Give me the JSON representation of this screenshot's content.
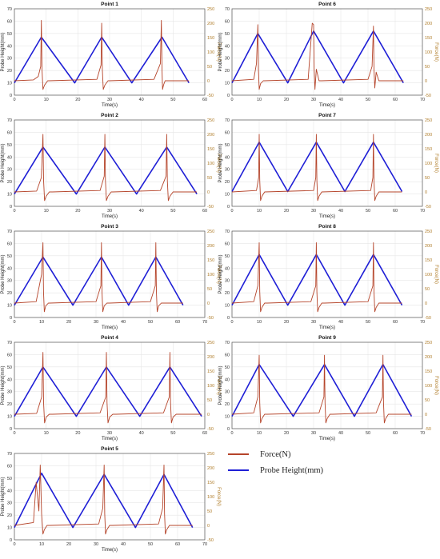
{
  "colors": {
    "force": "#b5442a",
    "height": "#1f1fd6",
    "axis_right": "#b07d2a",
    "grid": "#e6e6e6"
  },
  "legend": {
    "force_label": "Force(N)",
    "height_label": "Probe Height(mm)"
  },
  "chart_data": [
    {
      "type": "line",
      "title": "Point 1",
      "xlabel": "Time(s)",
      "ylabel_left": "Probe Height(mm)",
      "ylabel_right": "Force(N)",
      "xlim": [
        0,
        60
      ],
      "xticks": [
        0,
        10,
        20,
        30,
        40,
        50,
        60
      ],
      "ylim_left": [
        0,
        70
      ],
      "ylim_right": [
        -50,
        250
      ],
      "series": [
        {
          "name": "Probe Height(mm)",
          "axis": "left",
          "x": [
            0,
            8.5,
            19,
            27.5,
            37,
            46.5,
            55
          ],
          "y": [
            10,
            47,
            10,
            47,
            10,
            47,
            10
          ]
        },
        {
          "name": "Force(N)",
          "axis": "right",
          "x": [
            0,
            6,
            7.5,
            8.3,
            8.5,
            8.7,
            9,
            9.5,
            10.5,
            11,
            26,
            27.3,
            27.5,
            27.7,
            28,
            28.5,
            29.5,
            30,
            44,
            46,
            46.3,
            46.5,
            46.7,
            47,
            47.5,
            48.5,
            49,
            55
          ],
          "y": [
            0,
            3,
            15,
            50,
            210,
            40,
            -30,
            -15,
            0,
            0,
            5,
            55,
            200,
            40,
            -30,
            -15,
            0,
            0,
            5,
            60,
            210,
            40,
            -30,
            -15,
            0,
            0,
            0,
            0
          ]
        }
      ]
    },
    {
      "type": "line",
      "title": "Point 6",
      "xlabel": "Time(s)",
      "ylabel_left": "Probe Height(mm)",
      "ylabel_right": "Force(N)",
      "xlim": [
        0,
        70
      ],
      "xticks": [
        0,
        10,
        20,
        30,
        40,
        50,
        60,
        70
      ],
      "ylim_left": [
        0,
        70
      ],
      "ylim_right": [
        -50,
        250
      ],
      "series": [
        {
          "name": "Probe Height(mm)",
          "axis": "left",
          "x": [
            0,
            9.5,
            20.5,
            30,
            41,
            52,
            63
          ],
          "y": [
            10,
            50,
            10,
            52,
            10,
            52,
            10
          ]
        },
        {
          "name": "Force(N)",
          "axis": "right",
          "x": [
            0,
            8,
            9,
            9.5,
            9.7,
            10,
            10.5,
            11.5,
            12,
            28,
            29.5,
            30,
            30.2,
            30.5,
            31,
            32,
            33,
            50,
            51.5,
            52,
            52.2,
            52.5,
            53,
            54,
            55,
            63
          ],
          "y": [
            0,
            5,
            60,
            195,
            40,
            -30,
            -10,
            0,
            0,
            5,
            200,
            195,
            40,
            -30,
            40,
            0,
            0,
            5,
            50,
            190,
            40,
            -25,
            30,
            0,
            0,
            0
          ]
        }
      ]
    },
    {
      "type": "line",
      "title": "Point 2",
      "xlabel": "Time(s)",
      "ylabel_left": "Probe Height(mm)",
      "ylabel_right": "Force(N)",
      "xlim": [
        0,
        60
      ],
      "xticks": [
        0,
        10,
        20,
        30,
        40,
        50,
        60
      ],
      "ylim_left": [
        0,
        70
      ],
      "ylim_right": [
        -50,
        250
      ],
      "series": [
        {
          "name": "Probe Height(mm)",
          "axis": "left",
          "x": [
            0,
            9,
            19.5,
            28.5,
            38.5,
            48,
            57.5
          ],
          "y": [
            10,
            48,
            10,
            48,
            10,
            48,
            10
          ]
        },
        {
          "name": "Force(N)",
          "axis": "right",
          "x": [
            0,
            7,
            8.5,
            9,
            9.2,
            9.5,
            10,
            11,
            12,
            27,
            28.3,
            28.5,
            28.7,
            29,
            29.5,
            30.5,
            31,
            46,
            47.8,
            48,
            48.2,
            48.5,
            49,
            50,
            51,
            57.5
          ],
          "y": [
            0,
            3,
            50,
            200,
            40,
            -30,
            -15,
            0,
            0,
            5,
            55,
            200,
            40,
            -30,
            -15,
            0,
            0,
            5,
            55,
            200,
            40,
            -30,
            -15,
            0,
            0,
            0
          ]
        }
      ]
    },
    {
      "type": "line",
      "title": "Point 7",
      "xlabel": "Time(s)",
      "ylabel_left": "Probe Height(mm)",
      "ylabel_right": "Force(N)",
      "xlim": [
        0,
        70
      ],
      "xticks": [
        0,
        10,
        20,
        30,
        40,
        50,
        60,
        70
      ],
      "ylim_left": [
        0,
        70
      ],
      "ylim_right": [
        -50,
        250
      ],
      "series": [
        {
          "name": "Probe Height(mm)",
          "axis": "left",
          "x": [
            0,
            10,
            20.5,
            31,
            41.5,
            52,
            62.5
          ],
          "y": [
            12,
            52,
            12,
            52,
            12,
            52,
            12
          ]
        },
        {
          "name": "Force(N)",
          "axis": "right",
          "x": [
            0,
            9,
            9.8,
            10,
            10.2,
            10.5,
            11,
            12,
            30,
            30.8,
            31,
            31.2,
            31.5,
            32,
            33,
            51,
            51.8,
            52,
            52.2,
            52.5,
            53,
            54,
            62.5
          ],
          "y": [
            0,
            5,
            50,
            200,
            40,
            -30,
            -15,
            0,
            5,
            50,
            200,
            40,
            -30,
            -15,
            0,
            5,
            50,
            200,
            40,
            -30,
            -15,
            0,
            0
          ]
        }
      ]
    },
    {
      "type": "line",
      "title": "Point 3",
      "xlabel": "Time(s)",
      "ylabel_left": "Probe Height(mm)",
      "ylabel_right": "Force(N)",
      "xlim": [
        0,
        70
      ],
      "xticks": [
        0,
        10,
        20,
        30,
        40,
        50,
        60,
        70
      ],
      "ylim_left": [
        0,
        70
      ],
      "ylim_right": [
        -50,
        250
      ],
      "series": [
        {
          "name": "Probe Height(mm)",
          "axis": "left",
          "x": [
            0,
            10.5,
            21.5,
            32,
            42,
            52,
            62
          ],
          "y": [
            10,
            49,
            10,
            49,
            10,
            49,
            10
          ]
        },
        {
          "name": "Force(N)",
          "axis": "right",
          "x": [
            0,
            8,
            10,
            10.5,
            10.7,
            11,
            11.5,
            12.5,
            13,
            30,
            31.8,
            32,
            32.2,
            32.5,
            33,
            34,
            35,
            50,
            51.8,
            52,
            52.2,
            52.5,
            53,
            54,
            55,
            62
          ],
          "y": [
            0,
            5,
            100,
            210,
            40,
            -30,
            -10,
            0,
            0,
            5,
            60,
            210,
            40,
            -30,
            -10,
            0,
            0,
            5,
            60,
            210,
            40,
            -30,
            -10,
            0,
            0,
            0
          ]
        }
      ]
    },
    {
      "type": "line",
      "title": "Point 8",
      "xlabel": "Time(s)",
      "ylabel_left": "Probe Height(mm)",
      "ylabel_right": "Force(N)",
      "xlim": [
        0,
        70
      ],
      "xticks": [
        0,
        10,
        20,
        30,
        40,
        50,
        60,
        70
      ],
      "ylim_left": [
        0,
        70
      ],
      "ylim_right": [
        -50,
        250
      ],
      "series": [
        {
          "name": "Probe Height(mm)",
          "axis": "left",
          "x": [
            0,
            10,
            20.5,
            31,
            41.5,
            52,
            62.5
          ],
          "y": [
            10,
            51,
            10,
            51,
            10,
            51,
            10
          ]
        },
        {
          "name": "Force(N)",
          "axis": "right",
          "x": [
            0,
            8,
            9.5,
            10,
            10.2,
            10.5,
            11,
            12,
            13,
            29,
            30.8,
            31,
            31.2,
            31.5,
            32,
            33,
            34,
            50,
            51.8,
            52,
            52.2,
            52.5,
            53,
            54,
            62.5
          ],
          "y": [
            0,
            5,
            60,
            210,
            40,
            -30,
            -15,
            0,
            0,
            5,
            60,
            210,
            40,
            -30,
            -15,
            0,
            0,
            5,
            60,
            210,
            40,
            -30,
            -15,
            0,
            0
          ]
        }
      ]
    },
    {
      "type": "line",
      "title": "Point 4",
      "xlabel": "Time(s)",
      "ylabel_left": "Probe Height(mm)",
      "ylabel_right": "Force(N)",
      "xlim": [
        0,
        60
      ],
      "xticks": [
        0,
        10,
        20,
        30,
        40,
        50,
        60
      ],
      "ylim_left": [
        0,
        70
      ],
      "ylim_right": [
        -50,
        250
      ],
      "series": [
        {
          "name": "Probe Height(mm)",
          "axis": "left",
          "x": [
            0,
            9,
            19.5,
            29,
            39.5,
            49,
            59
          ],
          "y": [
            10,
            50,
            10,
            50,
            10,
            50,
            10
          ]
        },
        {
          "name": "Force(N)",
          "axis": "right",
          "x": [
            0,
            7,
            8.6,
            9,
            9.2,
            9.5,
            10,
            11,
            12,
            27,
            28.8,
            29,
            29.2,
            29.5,
            30,
            31,
            32,
            47,
            48.8,
            49,
            49.2,
            49.5,
            50,
            51,
            59
          ],
          "y": [
            0,
            3,
            60,
            215,
            40,
            -30,
            -10,
            0,
            0,
            5,
            60,
            215,
            40,
            -30,
            -10,
            0,
            0,
            5,
            60,
            215,
            40,
            -30,
            -10,
            0,
            0
          ]
        }
      ]
    },
    {
      "type": "line",
      "title": "Point 9",
      "xlabel": "Time(s)",
      "ylabel_left": "Probe Height(mm)",
      "ylabel_right": "Force(N)",
      "xlim": [
        0,
        70
      ],
      "xticks": [
        0,
        10,
        20,
        30,
        40,
        50,
        60,
        70
      ],
      "ylim_left": [
        0,
        70
      ],
      "ylim_right": [
        -50,
        250
      ],
      "series": [
        {
          "name": "Probe Height(mm)",
          "axis": "left",
          "x": [
            0,
            10,
            22.5,
            34,
            45,
            55.5,
            66
          ],
          "y": [
            10,
            52,
            10,
            52,
            10,
            52,
            10
          ]
        },
        {
          "name": "Force(N)",
          "axis": "right",
          "x": [
            0,
            8,
            9.5,
            10,
            10.2,
            10.5,
            11,
            12,
            13,
            32,
            33.8,
            34,
            34.2,
            34.5,
            35,
            36,
            37,
            53,
            55.3,
            55.5,
            55.7,
            56,
            56.5,
            57.5,
            66
          ],
          "y": [
            0,
            5,
            60,
            205,
            40,
            -30,
            -15,
            0,
            0,
            5,
            60,
            205,
            40,
            -30,
            -15,
            0,
            0,
            5,
            60,
            205,
            40,
            -30,
            -15,
            0,
            0
          ]
        }
      ]
    },
    {
      "type": "line",
      "title": "Point 5",
      "xlabel": "Time(s)",
      "ylabel_left": "Probe Height(mm)",
      "ylabel_right": "Force(N)",
      "xlim": [
        0,
        70
      ],
      "xticks": [
        0,
        10,
        20,
        30,
        40,
        50,
        60,
        70
      ],
      "ylim_left": [
        0,
        70
      ],
      "ylim_right": [
        -50,
        250
      ],
      "series": [
        {
          "name": "Probe Height(mm)",
          "axis": "left",
          "x": [
            0,
            10,
            21.5,
            33,
            44.5,
            55,
            65.5
          ],
          "y": [
            10,
            54,
            10,
            53,
            10,
            53,
            10
          ]
        },
        {
          "name": "Force(N)",
          "axis": "right",
          "x": [
            0,
            7,
            8,
            9,
            9.5,
            10,
            10.5,
            11,
            12,
            13,
            31,
            32.5,
            33,
            33.2,
            33.5,
            34,
            35,
            36,
            53,
            54.5,
            55,
            55.2,
            55.5,
            56,
            57,
            58,
            65.5
          ],
          "y": [
            0,
            10,
            150,
            50,
            210,
            40,
            -30,
            -15,
            0,
            0,
            5,
            60,
            210,
            40,
            -30,
            -15,
            0,
            0,
            5,
            60,
            210,
            40,
            -30,
            -15,
            0,
            0,
            0
          ]
        }
      ]
    }
  ]
}
